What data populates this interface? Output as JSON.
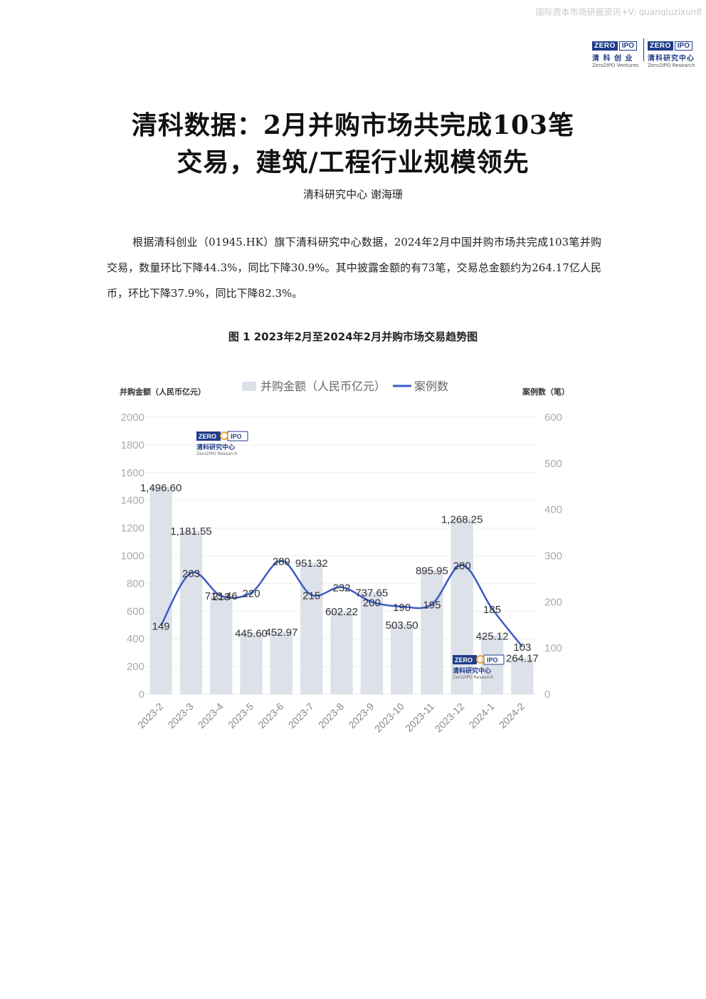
{
  "header": {
    "watermark": "国际资本市场研报资讯+V: quanqiuzixun8",
    "logo1": {
      "zero": "ZERO",
      "ipo": "IPO",
      "cn": "清 科 创 业",
      "en": "Zero2IPO Ventures"
    },
    "logo2": {
      "zero": "ZERO",
      "ipo": "IPO",
      "cn": "清科研究中心",
      "en": "Zero2IPO Research"
    }
  },
  "title_line1": "清科数据：2月并购市场共完成103笔",
  "title_line2": "交易，建筑/工程行业规模领先",
  "author": "清科研究中心 谢海珊",
  "paragraph": "根据清科创业（01945.HK）旗下清科研究中心数据，2024年2月中国并购市场共完成103笔并购交易，数量环比下降44.3%，同比下降30.9%。其中披露金额的有73笔，交易总金额约为264.17亿人民币，环比下降37.9%，同比下降82.3%。",
  "figure_caption": "图 1 2023年2月至2024年2月并购市场交易趋势图",
  "chart_watermark": {
    "zero": "ZERO",
    "ipo": "IPO",
    "cn": "清科研究中心",
    "en": "Zero2IPO Research"
  },
  "chart_data": {
    "type": "bar",
    "categories": [
      "2023-2",
      "2023-3",
      "2023-4",
      "2023-5",
      "2023-6",
      "2023-7",
      "2023-8",
      "2023-9",
      "2023-10",
      "2023-11",
      "2023-12",
      "2024-1",
      "2024-2"
    ],
    "series": [
      {
        "name": "并购金额（人民币亿元）",
        "type": "bar",
        "axis": "left",
        "values": [
          1496.6,
          1181.55,
          713.46,
          445.6,
          452.97,
          951.32,
          602.22,
          737.65,
          503.5,
          895.95,
          1268.25,
          425.12,
          264.17
        ],
        "labels": [
          "1,496.60",
          "1,181.55",
          "713.46",
          "445.60",
          "452.97",
          "951.32",
          "602.22",
          "737.65",
          "503.50",
          "895.95",
          "1,268.25",
          "425.12",
          "264.17"
        ],
        "color": "#dde1e9"
      },
      {
        "name": "案例数",
        "type": "line",
        "axis": "right",
        "values": [
          149,
          263,
          213,
          220,
          289,
          215,
          232,
          200,
          190,
          195,
          280,
          185,
          103
        ],
        "labels": [
          "149",
          "263",
          "213",
          "220",
          "289",
          "215",
          "232",
          "200",
          "190",
          "195",
          "280",
          "185",
          "103"
        ],
        "color": "#3a5bc7"
      }
    ],
    "ylabel_left": "并购金额（人民币亿元）",
    "ylabel_right": "案例数（笔）",
    "ylim_left": [
      0,
      2000
    ],
    "yticks_left": [
      "0",
      "200",
      "400",
      "600",
      "800",
      "1000",
      "1200",
      "1400",
      "1600",
      "1800",
      "2000"
    ],
    "ylim_right": [
      0,
      600
    ],
    "yticks_right": [
      "0",
      "100",
      "200",
      "300",
      "400",
      "500",
      "600"
    ],
    "grid": true,
    "legend": "top-center"
  }
}
